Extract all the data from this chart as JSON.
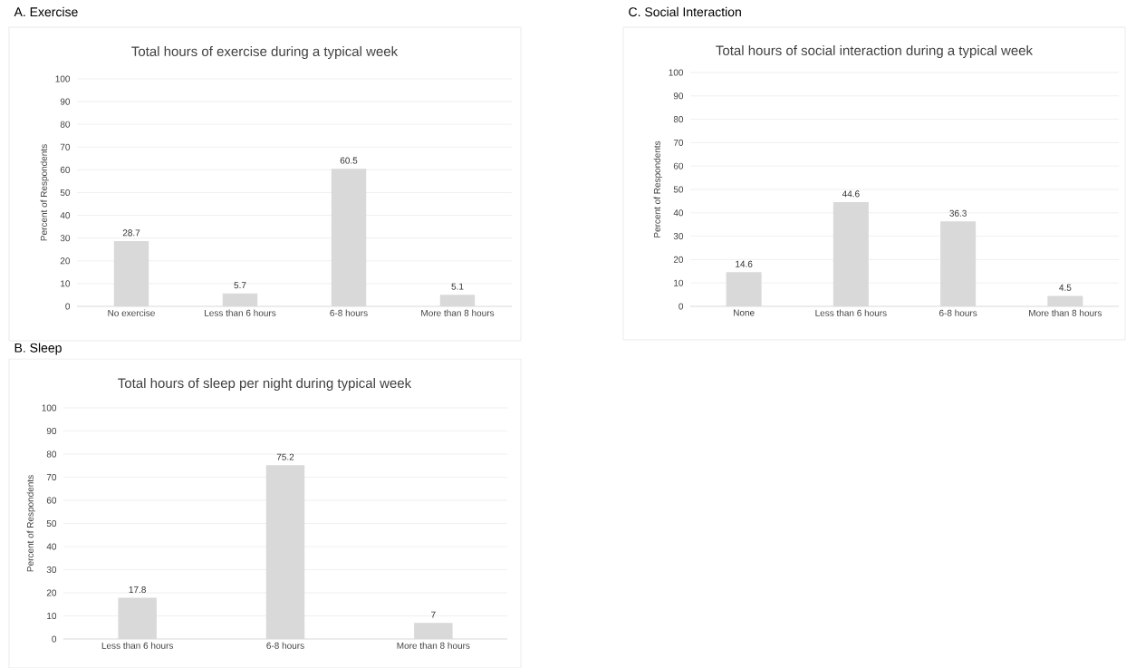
{
  "chart_data": [
    {
      "type": "bar",
      "title": "A. Exercise",
      "subtitle": "Total hours of exercise during a typical week",
      "ylabel": "Percent of Respondents",
      "categories": [
        "No exercise",
        "Less than 6 hours",
        "6-8 hours",
        "More than 8 hours"
      ],
      "values": [
        28.7,
        5.7,
        60.5,
        5.1
      ],
      "color": "#d9d9d9",
      "ylim": [
        0,
        100
      ],
      "yticks": [
        0,
        10,
        20,
        30,
        40,
        50,
        60,
        70,
        80,
        90,
        100
      ],
      "grid": "y",
      "data_labels": true
    },
    {
      "type": "bar",
      "title": "C. Social Interaction",
      "subtitle": "Total hours of social interaction during a typical week",
      "ylabel": "Percent of Respondents",
      "categories": [
        "None",
        "Less than 6 hours",
        "6-8 hours",
        "More than 8 hours"
      ],
      "values": [
        14.6,
        44.6,
        36.3,
        4.5
      ],
      "color": "#d9d9d9",
      "ylim": [
        0,
        100
      ],
      "yticks": [
        0,
        10,
        20,
        30,
        40,
        50,
        60,
        70,
        80,
        90,
        100
      ],
      "grid": "y",
      "data_labels": true
    },
    {
      "type": "bar",
      "title": "B. Sleep",
      "subtitle": "Total hours of sleep per night during typical week",
      "ylabel": "Percent of Respondents",
      "categories": [
        "Less than 6 hours",
        "6-8 hours",
        "More than 8 hours"
      ],
      "values": [
        17.8,
        75.2,
        7
      ],
      "color": "#d9d9d9",
      "ylim": [
        0,
        100
      ],
      "yticks": [
        0,
        10,
        20,
        30,
        40,
        50,
        60,
        70,
        80,
        90,
        100
      ],
      "grid": "y",
      "data_labels": true
    }
  ]
}
